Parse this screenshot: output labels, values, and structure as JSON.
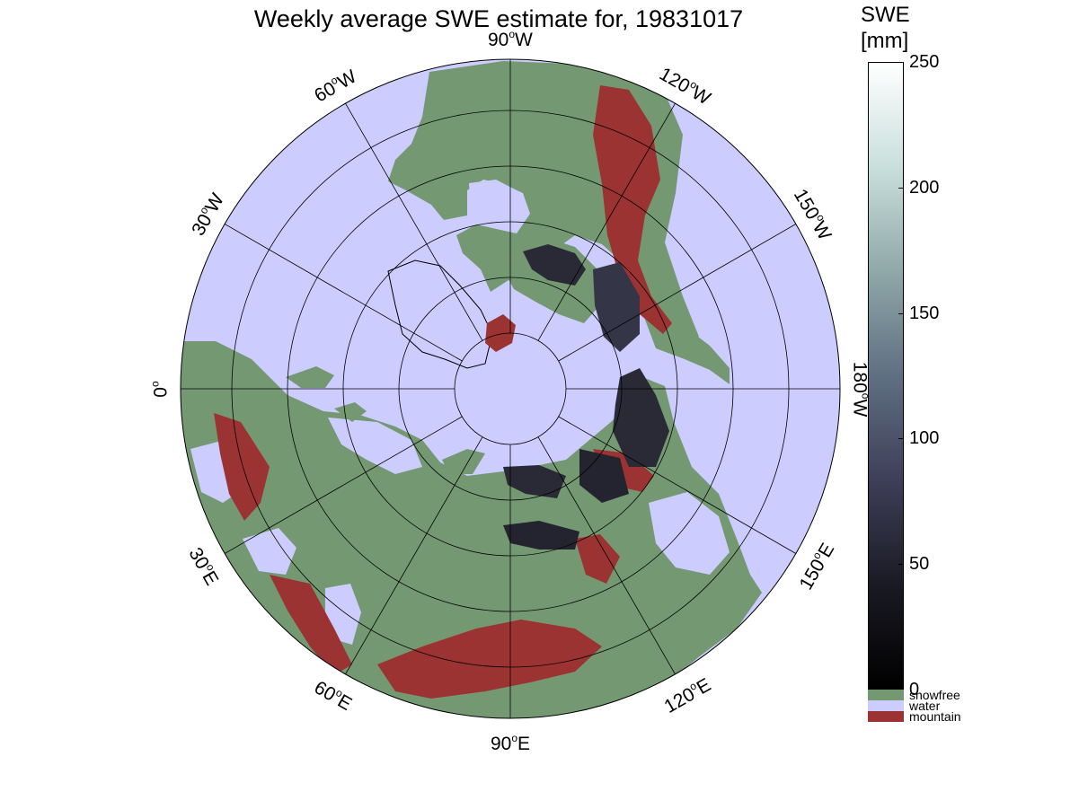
{
  "title": "Weekly average SWE estimate for, 19831017",
  "longitude_labels": [
    {
      "key": "90W",
      "value": "90",
      "hemisphere": "W"
    },
    {
      "key": "120W",
      "value": "120",
      "hemisphere": "W"
    },
    {
      "key": "150W",
      "value": "150",
      "hemisphere": "W"
    },
    {
      "key": "180W",
      "value": "180",
      "hemisphere": "W"
    },
    {
      "key": "150E",
      "value": "150",
      "hemisphere": "E"
    },
    {
      "key": "120E",
      "value": "120",
      "hemisphere": "E"
    },
    {
      "key": "90E",
      "value": "90",
      "hemisphere": "E"
    },
    {
      "key": "60E",
      "value": "60",
      "hemisphere": "E"
    },
    {
      "key": "30E",
      "value": "30",
      "hemisphere": "E"
    },
    {
      "key": "0",
      "value": "0",
      "hemisphere": ""
    },
    {
      "key": "30W",
      "value": "30",
      "hemisphere": "W"
    },
    {
      "key": "60W",
      "value": "60",
      "hemisphere": "W"
    }
  ],
  "colorbar": {
    "title_line1": "SWE",
    "title_line2": "[mm]",
    "ticks": [
      "250",
      "200",
      "150",
      "100",
      "50",
      "0"
    ],
    "range": [
      0,
      250
    ],
    "gradient_colors": [
      "#ffffff",
      "#c9dfdc",
      "#8fa8a8",
      "#5f6f82",
      "#3e3f58",
      "#1a1a24",
      "#000000"
    ]
  },
  "legend": [
    {
      "label": "snowfree",
      "color": "#749972"
    },
    {
      "label": "water",
      "color": "#ccccff"
    },
    {
      "label": "mountain",
      "color": "#9b3333"
    }
  ],
  "map_colors": {
    "water": "#ccccff",
    "land": "#749972",
    "mountain": "#9b3333",
    "snow_dark": "#2a2a36",
    "grid": "#000000"
  }
}
